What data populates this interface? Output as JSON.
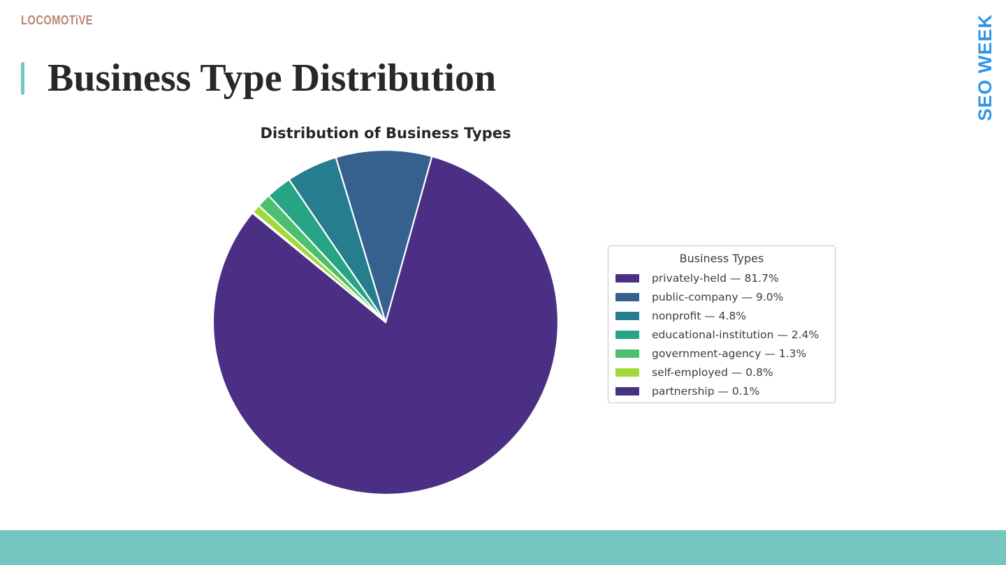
{
  "header": {
    "logo_text": "LOCOMOTiVE",
    "corner_text": "SEO WEEK",
    "title": "Business Type Distribution"
  },
  "colors": {
    "accent_teal": "#6fc7bf",
    "footer_teal": "#75c6c1",
    "logo_salmon": "#b98670",
    "corner_blue": "#2f96e8",
    "title_text": "#26292b",
    "chart_title_text": "#262626",
    "legend_text": "#3c3c3c",
    "legend_border": "#cccccc",
    "wedge_stroke": "#ffffff"
  },
  "chart_data": {
    "type": "pie",
    "title": "Distribution of Business Types",
    "legend_title": "Business Types",
    "legend_position": "right",
    "start_angle_deg": 140.6,
    "direction": "counterclockwise",
    "label_format": "{label} — {value}%",
    "slices": [
      {
        "label": "privately-held",
        "value": 81.7,
        "color": "#4b2f84"
      },
      {
        "label": "public-company",
        "value": 9.0,
        "color": "#36608e"
      },
      {
        "label": "nonprofit",
        "value": 4.8,
        "color": "#257d8e"
      },
      {
        "label": "educational-institution",
        "value": 2.4,
        "color": "#27a385"
      },
      {
        "label": "government-agency",
        "value": 1.3,
        "color": "#4cc06e"
      },
      {
        "label": "self-employed",
        "value": 0.8,
        "color": "#a2d93a"
      },
      {
        "label": "partnership",
        "value": 0.1,
        "color": "#46327e"
      }
    ]
  }
}
